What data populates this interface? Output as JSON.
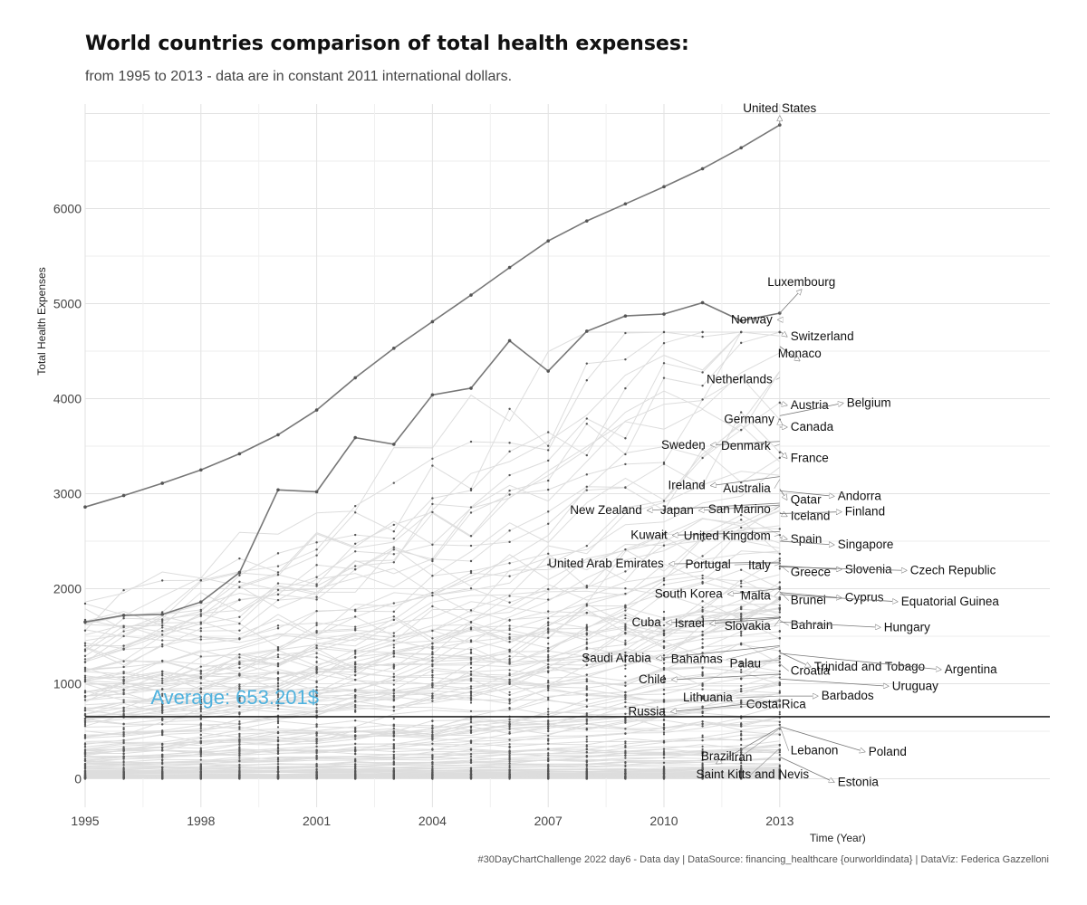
{
  "title": "World countries comparison of total health expenses:",
  "subtitle": "from 1995 to 2013 - data are in constant 2011 international dollars.",
  "caption": "#30DayChartChallenge 2022 day6 - Data day | DataSource: financing_healthcare {ourworldindata} | DataViz: Federica Gazzelloni",
  "chart_data": {
    "type": "line",
    "xlabel": "Time (Year)",
    "ylabel": "Total Health Expenses",
    "xlim": [
      1995,
      2020
    ],
    "ylim": [
      -300,
      7100
    ],
    "x_ticks": [
      1995,
      1998,
      2001,
      2004,
      2007,
      2010,
      2013
    ],
    "y_ticks": [
      0,
      1000,
      2000,
      3000,
      4000,
      5000,
      6000
    ],
    "grid": true,
    "average": {
      "value": 653.201,
      "label": "Average: 653.201$"
    },
    "colors": {
      "highlight_line": "#777777",
      "background_lines": "#dddddd",
      "points": "#555555",
      "average_line": "#222222",
      "average_label": "#4fb2de"
    },
    "series": [
      {
        "name": "United States",
        "x": [
          1995,
          1996,
          1997,
          1998,
          1999,
          2000,
          2001,
          2002,
          2003,
          2004,
          2005,
          2006,
          2007,
          2008,
          2009,
          2010,
          2011,
          2012,
          2013
        ],
        "values": [
          2860,
          2980,
          3110,
          3250,
          3420,
          3620,
          3880,
          4220,
          4530,
          4810,
          5090,
          5380,
          5660,
          5870,
          6050,
          6230,
          6420,
          6640,
          6880
        ]
      },
      {
        "name": "Luxembourg",
        "x": [
          1995,
          1996,
          1997,
          1998,
          1999,
          2000,
          2001,
          2002,
          2003,
          2004,
          2005,
          2006,
          2007,
          2008,
          2009,
          2010,
          2011,
          2012,
          2013
        ],
        "values": [
          1650,
          1720,
          1730,
          1860,
          2170,
          3040,
          3020,
          3590,
          3520,
          4040,
          4110,
          4610,
          4290,
          4710,
          4870,
          4890,
          5010,
          4820,
          4900
        ]
      }
    ],
    "labels_2013": [
      {
        "name": "United States",
        "value": 6880
      },
      {
        "name": "Luxembourg",
        "value": 4900
      },
      {
        "name": "Norway",
        "value": 4830
      },
      {
        "name": "Switzerland",
        "value": 4710
      },
      {
        "name": "Monaco",
        "value": 4550
      },
      {
        "name": "Netherlands",
        "value": 4220
      },
      {
        "name": "Austria",
        "value": 3950
      },
      {
        "name": "Belgium",
        "value": 3820
      },
      {
        "name": "Germany",
        "value": 3760
      },
      {
        "name": "Canada",
        "value": 3700
      },
      {
        "name": "Sweden",
        "value": 3550
      },
      {
        "name": "Denmark",
        "value": 3520
      },
      {
        "name": "France",
        "value": 3450
      },
      {
        "name": "Ireland",
        "value": 3180
      },
      {
        "name": "Australia",
        "value": 3150
      },
      {
        "name": "Qatar",
        "value": 3050
      },
      {
        "name": "Andorra",
        "value": 3030
      },
      {
        "name": "New Zealand",
        "value": 2900
      },
      {
        "name": "Japan",
        "value": 2880
      },
      {
        "name": "San Marino",
        "value": 2870
      },
      {
        "name": "Iceland",
        "value": 2800
      },
      {
        "name": "Finland",
        "value": 2790
      },
      {
        "name": "Kuwait",
        "value": 2600
      },
      {
        "name": "United Kingdom",
        "value": 2570
      },
      {
        "name": "Spain",
        "value": 2540
      },
      {
        "name": "Singapore",
        "value": 2500
      },
      {
        "name": "United Arab Emirates",
        "value": 2280
      },
      {
        "name": "Portugal",
        "value": 2270
      },
      {
        "name": "Italy",
        "value": 2260
      },
      {
        "name": "Greece",
        "value": 2250
      },
      {
        "name": "Slovenia",
        "value": 2240
      },
      {
        "name": "Czech Republic",
        "value": 2230
      },
      {
        "name": "South Korea",
        "value": 2000
      },
      {
        "name": "Malta",
        "value": 1980
      },
      {
        "name": "Brunei",
        "value": 1970
      },
      {
        "name": "Cyprus",
        "value": 1960
      },
      {
        "name": "Equatorial Guinea",
        "value": 1940
      },
      {
        "name": "Cuba",
        "value": 1700
      },
      {
        "name": "Israel",
        "value": 1690
      },
      {
        "name": "Slovakia",
        "value": 1680
      },
      {
        "name": "Bahrain",
        "value": 1670
      },
      {
        "name": "Hungary",
        "value": 1650
      },
      {
        "name": "Saudi Arabia",
        "value": 1400
      },
      {
        "name": "Bahamas",
        "value": 1390
      },
      {
        "name": "Trinidad and Tobago",
        "value": 1330
      },
      {
        "name": "Argentina",
        "value": 1320
      },
      {
        "name": "Chile",
        "value": 1100
      },
      {
        "name": "Palau",
        "value": 1250
      },
      {
        "name": "Croatia",
        "value": 1210
      },
      {
        "name": "Uruguay",
        "value": 1050
      },
      {
        "name": "Russia",
        "value": 820
      },
      {
        "name": "Lithuania",
        "value": 870
      },
      {
        "name": "Costa Rica",
        "value": 840
      },
      {
        "name": "Barbados",
        "value": 870
      },
      {
        "name": "Brazil",
        "value": 540
      },
      {
        "name": "Iran",
        "value": 530
      },
      {
        "name": "Lebanon",
        "value": 560
      },
      {
        "name": "Poland",
        "value": 550
      },
      {
        "name": "Saint Kitts and Nevis",
        "value": 320
      },
      {
        "name": "Estonia",
        "value": 230
      }
    ]
  }
}
